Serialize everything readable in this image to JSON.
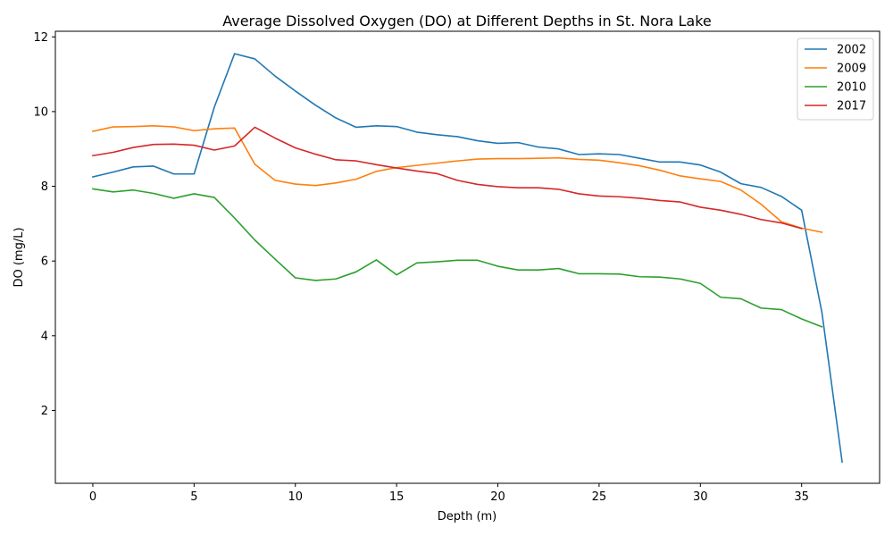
{
  "chart_data": {
    "type": "line",
    "title": "Average Dissolved Oxygen (DO) at Different Depths in St. Nora Lake",
    "xlabel": "Depth (m)",
    "ylabel": "DO (mg/L)",
    "xlim": [
      -1.85,
      38.85
    ],
    "ylim": [
      0.05,
      12.15
    ],
    "xticks": [
      0,
      5,
      10,
      15,
      20,
      25,
      30,
      35
    ],
    "yticks": [
      2,
      4,
      6,
      8,
      10,
      12
    ],
    "legend_position": "top-right",
    "grid": false,
    "series": [
      {
        "name": "2002",
        "color": "#1f77b4",
        "x": [
          0,
          1,
          2,
          3,
          4,
          5,
          6,
          7,
          8,
          9,
          10,
          11,
          12,
          13,
          14,
          15,
          16,
          17,
          18,
          19,
          20,
          21,
          22,
          23,
          24,
          25,
          26,
          27,
          28,
          29,
          30,
          31,
          32,
          33,
          34,
          35,
          36,
          37
        ],
        "y": [
          8.25,
          8.38,
          8.52,
          8.54,
          8.33,
          8.33,
          10.12,
          11.55,
          11.41,
          10.95,
          10.55,
          10.17,
          9.83,
          9.58,
          9.62,
          9.6,
          9.45,
          9.38,
          9.33,
          9.22,
          9.15,
          9.17,
          9.05,
          9.0,
          8.85,
          8.87,
          8.85,
          8.75,
          8.65,
          8.65,
          8.57,
          8.38,
          8.07,
          7.97,
          7.73,
          7.36,
          4.63,
          0.62
        ]
      },
      {
        "name": "2009",
        "color": "#ff7f0e",
        "x": [
          0,
          1,
          2,
          3,
          4,
          5,
          6,
          7,
          8,
          9,
          10,
          11,
          12,
          13,
          14,
          15,
          16,
          17,
          18,
          19,
          20,
          21,
          22,
          23,
          24,
          25,
          26,
          27,
          28,
          29,
          30,
          31,
          32,
          33,
          34,
          35,
          36
        ],
        "y": [
          9.47,
          9.59,
          9.6,
          9.62,
          9.59,
          9.49,
          9.54,
          9.56,
          8.59,
          8.16,
          8.06,
          8.02,
          8.09,
          8.19,
          8.4,
          8.5,
          8.56,
          8.62,
          8.68,
          8.73,
          8.74,
          8.74,
          8.75,
          8.76,
          8.72,
          8.7,
          8.63,
          8.55,
          8.43,
          8.28,
          8.2,
          8.13,
          7.9,
          7.52,
          7.05,
          6.88,
          6.77
        ]
      },
      {
        "name": "2010",
        "color": "#2ca02c",
        "x": [
          0,
          1,
          2,
          3,
          4,
          5,
          6,
          7,
          8,
          9,
          10,
          11,
          12,
          13,
          14,
          15,
          16,
          17,
          18,
          19,
          20,
          21,
          22,
          23,
          24,
          25,
          26,
          27,
          28,
          29,
          30,
          31,
          32,
          33,
          34,
          35,
          36
        ],
        "y": [
          7.93,
          7.85,
          7.9,
          7.81,
          7.68,
          7.8,
          7.7,
          7.15,
          6.56,
          6.05,
          5.55,
          5.48,
          5.52,
          5.71,
          6.03,
          5.63,
          5.95,
          5.98,
          6.02,
          6.02,
          5.86,
          5.76,
          5.76,
          5.8,
          5.66,
          5.66,
          5.65,
          5.58,
          5.57,
          5.52,
          5.4,
          5.03,
          4.99,
          4.74,
          4.7,
          4.45,
          4.24
        ]
      },
      {
        "name": "2017",
        "color": "#d62728",
        "x": [
          0,
          1,
          2,
          3,
          4,
          5,
          6,
          7,
          8,
          9,
          10,
          11,
          12,
          13,
          14,
          15,
          16,
          17,
          18,
          19,
          20,
          21,
          22,
          23,
          24,
          25,
          26,
          27,
          28,
          29,
          30,
          31,
          32,
          33,
          34,
          35
        ],
        "y": [
          8.82,
          8.91,
          9.04,
          9.12,
          9.13,
          9.1,
          8.97,
          9.08,
          9.58,
          9.29,
          9.03,
          8.86,
          8.71,
          8.68,
          8.58,
          8.49,
          8.41,
          8.34,
          8.16,
          8.05,
          7.99,
          7.96,
          7.96,
          7.92,
          7.8,
          7.74,
          7.72,
          7.68,
          7.62,
          7.58,
          7.44,
          7.36,
          7.25,
          7.11,
          7.02,
          6.87
        ]
      }
    ]
  }
}
